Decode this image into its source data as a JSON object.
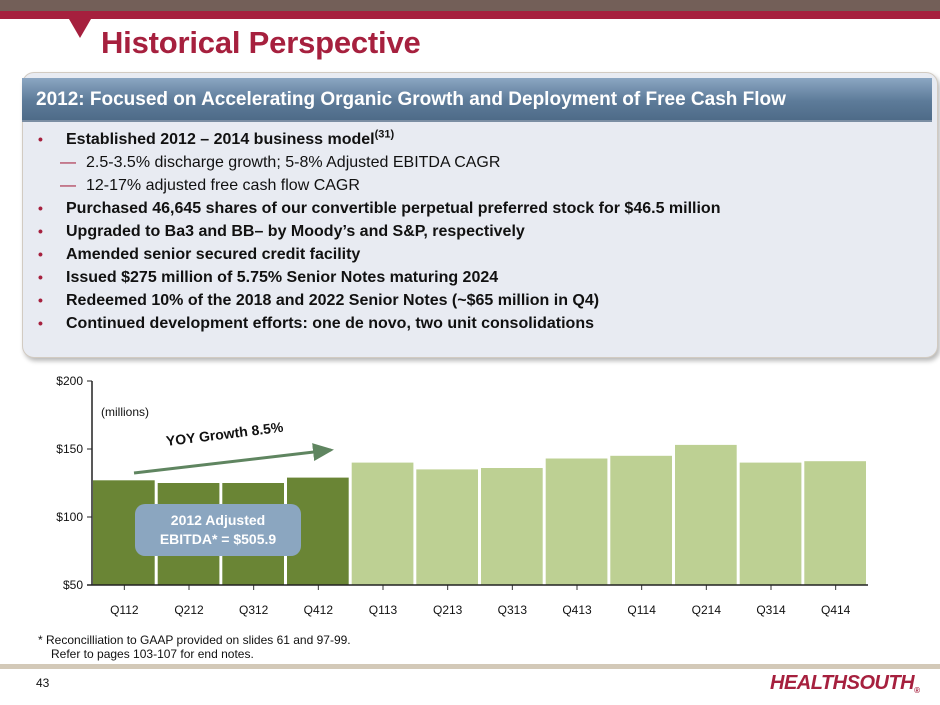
{
  "slide": {
    "title": "Historical Perspective",
    "page_number": "43",
    "logo_text": "HEALTHSOUTH",
    "logo_mark": "®",
    "colors": {
      "brand_red": "#a6203e",
      "header_blue": "#5d7b99",
      "bar_2012": "#6a8535",
      "bar_2013_2014": "#bdd093",
      "callout_blue": "#8ba6c0",
      "arrow_green": "#5f8560"
    }
  },
  "panel": {
    "header": "2012: Focused on Accelerating Organic Growth and Deployment of Free Cash Flow",
    "items": [
      {
        "type": "bullet",
        "text": "Established 2012 – 2014 business model",
        "sup": "(31)"
      },
      {
        "type": "sub",
        "text": "2.5-3.5% discharge growth; 5-8% Adjusted EBITDA CAGR"
      },
      {
        "type": "sub",
        "text": "12-17% adjusted free cash flow CAGR"
      },
      {
        "type": "bullet",
        "text": "Purchased 46,645 shares of our convertible perpetual preferred stock for $46.5 million"
      },
      {
        "type": "bullet",
        "text": "Upgraded to Ba3 and BB– by Moody’s and S&P, respectively"
      },
      {
        "type": "bullet",
        "text": "Amended senior secured credit facility"
      },
      {
        "type": "bullet",
        "text": "Issued $275 million of 5.75% Senior Notes maturing 2024"
      },
      {
        "type": "bullet",
        "text": "Redeemed 10% of the 2018 and 2022 Senior Notes (~$65 million in Q4)"
      },
      {
        "type": "bullet",
        "text": "Continued development efforts: one de novo, two unit consolidations"
      }
    ],
    "bullet_glyph": "•",
    "dash_glyph": "—"
  },
  "chart_data": {
    "type": "bar",
    "title": "",
    "xlabel": "",
    "ylabel": "",
    "units_label": "(millions)",
    "categories": [
      "Q112",
      "Q212",
      "Q312",
      "Q412",
      "Q113",
      "Q213",
      "Q313",
      "Q413",
      "Q114",
      "Q214",
      "Q314",
      "Q414"
    ],
    "values": [
      127,
      125,
      125,
      129,
      140,
      135,
      136,
      143,
      145,
      153,
      140,
      141
    ],
    "highlight_group": [
      "2012",
      "2012",
      "2012",
      "2012",
      "later",
      "later",
      "later",
      "later",
      "later",
      "later",
      "later",
      "later"
    ],
    "ylim": [
      50,
      200
    ],
    "yticks": [
      50,
      100,
      150,
      200
    ],
    "ytick_labels": [
      "$50",
      "$100",
      "$150",
      "$200"
    ],
    "grid": false,
    "legend": "none",
    "annotations": {
      "growth_arrow": "YOY Growth 8.5%",
      "callout_line1": "2012 Adjusted",
      "callout_line2": "EBITDA* = $505.9"
    }
  },
  "footnote": {
    "line1": "*  Reconcilliation to GAAP provided on slides 61 and 97-99.",
    "line2": "Refer to pages 103-107 for end notes."
  }
}
